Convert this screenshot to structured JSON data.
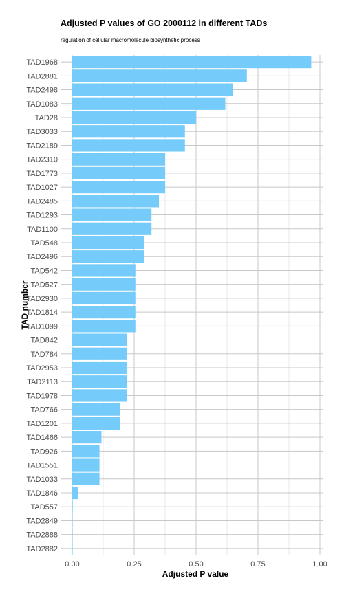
{
  "chart_data": {
    "type": "bar",
    "orientation": "horizontal",
    "title": "Adjusted P values of GO 2000112 in different TADs",
    "subtitle": "regulation of cellular macromolecule biosynthetic process",
    "xlabel": "Adjusted P value",
    "ylabel": "TAD number",
    "xlim": [
      0,
      1
    ],
    "xticks": [
      "0.00",
      "0.25",
      "0.50",
      "0.75",
      "1.00"
    ],
    "grid": true,
    "bar_color": "#75CBFA",
    "categories": [
      "TAD1968",
      "TAD2881",
      "TAD2498",
      "TAD1083",
      "TAD28",
      "TAD3033",
      "TAD2189",
      "TAD2310",
      "TAD1773",
      "TAD1027",
      "TAD2485",
      "TAD1293",
      "TAD1100",
      "TAD548",
      "TAD2496",
      "TAD542",
      "TAD527",
      "TAD2930",
      "TAD1814",
      "TAD1099",
      "TAD842",
      "TAD784",
      "TAD2953",
      "TAD2113",
      "TAD1978",
      "TAD766",
      "TAD1201",
      "TAD1466",
      "TAD926",
      "TAD1551",
      "TAD1033",
      "TAD1846",
      "TAD557",
      "TAD2849",
      "TAD2888",
      "TAD2882"
    ],
    "values": [
      0.965,
      0.705,
      0.648,
      0.618,
      0.5,
      0.455,
      0.455,
      0.375,
      0.375,
      0.375,
      0.35,
      0.32,
      0.32,
      0.29,
      0.29,
      0.255,
      0.255,
      0.255,
      0.255,
      0.255,
      0.222,
      0.222,
      0.222,
      0.222,
      0.222,
      0.192,
      0.192,
      0.118,
      0.11,
      0.11,
      0.11,
      0.022,
      0.002,
      0.001,
      0.001,
      0.001
    ]
  }
}
